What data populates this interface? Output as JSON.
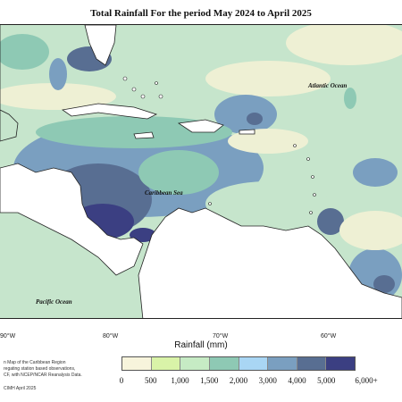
{
  "title": "Total Rainfall For the period May 2024 to April 2025",
  "labels": {
    "atlantic": "Atlantic Ocean",
    "caribbean": "Caribbean Sea",
    "pacific": "Pacific Ocean"
  },
  "axis": {
    "ticks": [
      "90°W",
      "80°W",
      "70°W",
      "60°W"
    ],
    "title": "Rainfall (mm)"
  },
  "notes": [
    "n Map of the Caribbean Region",
    "regating station based observations,",
    "CF, with NCEP/NCAR Reanalysis Data.",
    "CIMH April 2025"
  ],
  "legend": {
    "colors": [
      "#f7f4dc",
      "#d9f3a8",
      "#c6ebc4",
      "#8ec9b4",
      "#a9d6f4",
      "#7a9fc0",
      "#586e92",
      "#3b3f82"
    ],
    "values": [
      "0",
      "500",
      "1,000",
      "1,500",
      "2,000",
      "3,000",
      "4,000",
      "5,000",
      "6,000+"
    ]
  }
}
